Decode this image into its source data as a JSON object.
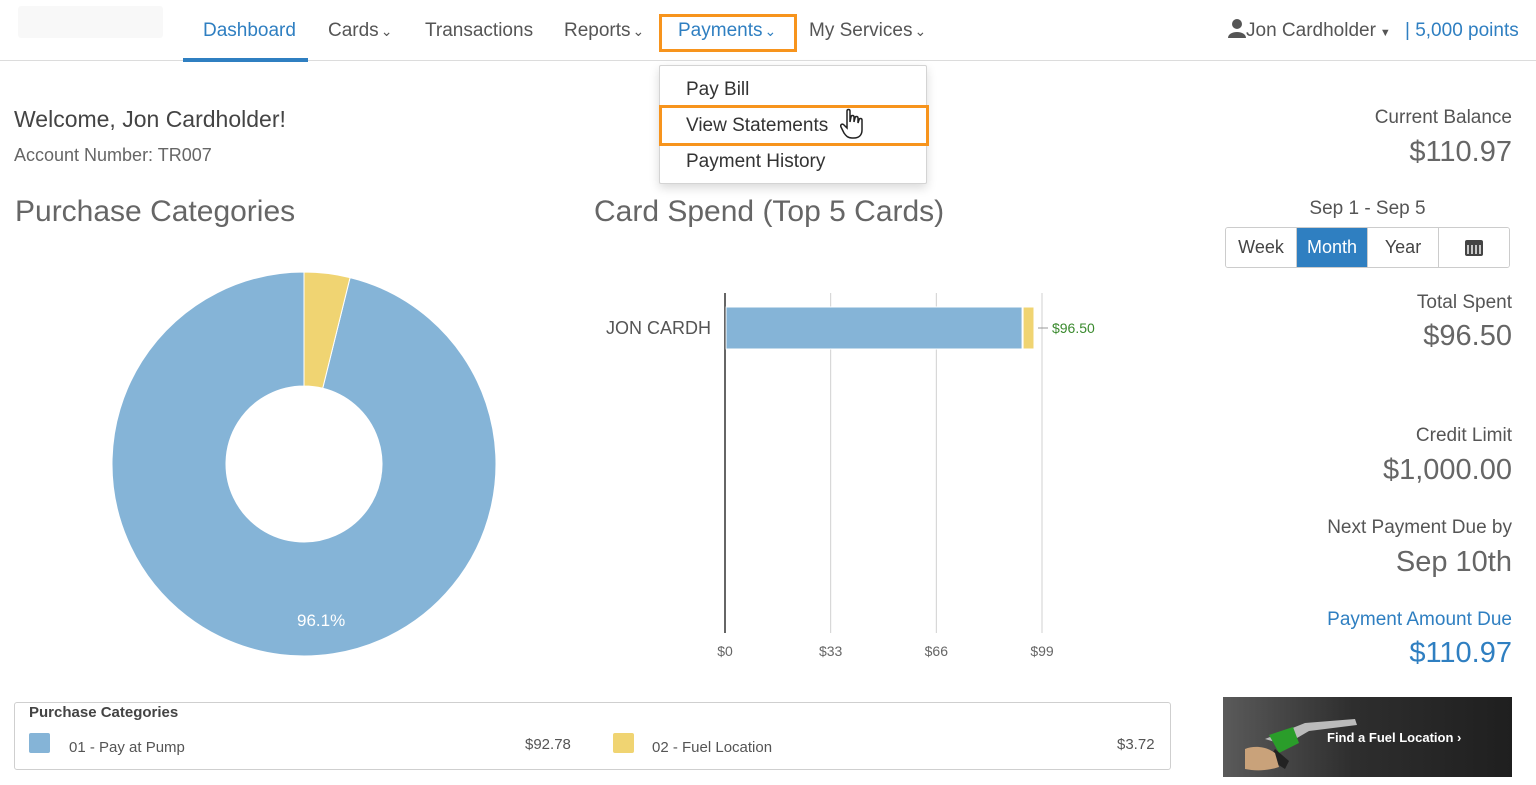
{
  "nav": {
    "items": [
      {
        "label": "Dashboard"
      },
      {
        "label": "Cards"
      },
      {
        "label": "Transactions"
      },
      {
        "label": "Reports"
      },
      {
        "label": "Payments"
      },
      {
        "label": "My Services"
      }
    ],
    "user": "Jon Cardholder",
    "points": "| 5,000 points"
  },
  "payments_menu": {
    "items": [
      "Pay Bill",
      "View Statements",
      "Payment History"
    ]
  },
  "welcome": {
    "greeting": "Welcome, Jon Cardholder!",
    "account": "Account Number: TR007"
  },
  "sections": {
    "purchase_categories": "Purchase Categories",
    "card_spend": "Card Spend (Top 5 Cards)"
  },
  "chart_data": [
    {
      "type": "pie",
      "title": "Purchase Categories",
      "categories": [
        "01 - Pay at Pump",
        "02 - Fuel Location"
      ],
      "values": [
        92.78,
        3.72
      ],
      "colors": [
        "#85b4d7",
        "#f0d472"
      ],
      "data_labels": [
        "96.1%",
        ""
      ]
    },
    {
      "type": "bar",
      "title": "Card Spend (Top 5 Cards)",
      "categories": [
        "JON CARDH"
      ],
      "series": [
        {
          "name": "01 - Pay at Pump",
          "values": [
            92.78
          ],
          "color": "#85b4d7"
        },
        {
          "name": "02 - Fuel Location",
          "values": [
            3.72
          ],
          "color": "#f0d472"
        }
      ],
      "total_labels": [
        "$96.50"
      ],
      "x_ticks": [
        "$0",
        "$33",
        "$66",
        "$99"
      ],
      "xlim": [
        0,
        99
      ],
      "orientation": "horizontal",
      "grid": true
    }
  ],
  "legend": {
    "title": "Purchase Categories",
    "items": [
      {
        "label": "01 - Pay at Pump",
        "value": "$92.78",
        "color": "#85b4d7"
      },
      {
        "label": "02 - Fuel Location",
        "value": "$3.72",
        "color": "#f0d472"
      }
    ]
  },
  "summary": {
    "current_balance_label": "Current Balance",
    "current_balance": "$110.97",
    "date_range": "Sep 1 - Sep 5",
    "period_buttons": [
      "Week",
      "Month",
      "Year"
    ],
    "selected_period": "Month",
    "total_spent_label": "Total Spent",
    "total_spent": "$96.50",
    "credit_limit_label": "Credit Limit",
    "credit_limit": "$1,000.00",
    "next_due_label": "Next Payment Due by",
    "next_due": "Sep 10th",
    "amount_due_label": "Payment Amount Due",
    "amount_due": "$110.97"
  },
  "banner": {
    "text": "Find a Fuel Location ›"
  },
  "colors": {
    "accent": "#2f7fc1",
    "highlight": "#f7941d"
  }
}
